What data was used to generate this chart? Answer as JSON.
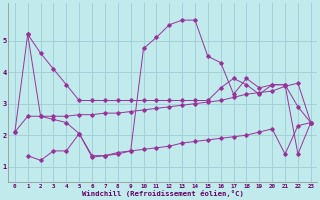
{
  "xlabel": "Windchill (Refroidissement éolien,°C)",
  "background_color": "#c0eaec",
  "grid_color": "#9ecdd4",
  "line_color": "#993399",
  "xlim": [
    -0.5,
    23.5
  ],
  "ylim": [
    0.5,
    6.2
  ],
  "xticks": [
    0,
    1,
    2,
    3,
    4,
    5,
    6,
    7,
    8,
    9,
    10,
    11,
    12,
    13,
    14,
    15,
    16,
    17,
    18,
    19,
    20,
    21,
    22,
    23
  ],
  "yticks": [
    1,
    2,
    3,
    4,
    5
  ],
  "series": [
    {
      "x": [
        0,
        1,
        2,
        3,
        4,
        5,
        6,
        7,
        8,
        9,
        10,
        11,
        12,
        13,
        14,
        15,
        16,
        17,
        18,
        19,
        20,
        21,
        22,
        23
      ],
      "y": [
        2.1,
        5.2,
        4.6,
        4.1,
        3.6,
        3.1,
        3.1,
        3.1,
        3.1,
        3.1,
        3.1,
        3.1,
        3.1,
        3.1,
        3.1,
        3.1,
        3.5,
        3.8,
        3.6,
        3.3,
        3.6,
        3.6,
        2.9,
        2.4
      ]
    },
    {
      "x": [
        1,
        2,
        3,
        4,
        5,
        6,
        7,
        8,
        9,
        10,
        11,
        12,
        13,
        14,
        15,
        16,
        17,
        18,
        19,
        20,
        21,
        22,
        23
      ],
      "y": [
        5.2,
        2.6,
        2.5,
        2.4,
        2.05,
        1.35,
        1.35,
        1.45,
        1.5,
        4.75,
        5.1,
        5.5,
        5.65,
        5.65,
        4.5,
        4.3,
        3.3,
        3.8,
        3.5,
        3.6,
        3.6,
        1.4,
        2.4
      ]
    },
    {
      "x": [
        0,
        1,
        2,
        3,
        4,
        5,
        6,
        7,
        8,
        9,
        10,
        11,
        12,
        13,
        14,
        15,
        16,
        17,
        18,
        19,
        20,
        21,
        22,
        23
      ],
      "y": [
        2.1,
        2.6,
        2.6,
        2.6,
        2.6,
        2.65,
        2.65,
        2.7,
        2.7,
        2.75,
        2.8,
        2.85,
        2.9,
        2.95,
        3.0,
        3.05,
        3.1,
        3.2,
        3.3,
        3.35,
        3.4,
        3.55,
        3.65,
        2.4
      ]
    },
    {
      "x": [
        1,
        2,
        3,
        4,
        5,
        6,
        7,
        8,
        9,
        10,
        11,
        12,
        13,
        14,
        15,
        16,
        17,
        18,
        19,
        20,
        21,
        22,
        23
      ],
      "y": [
        1.35,
        1.2,
        1.5,
        1.5,
        2.05,
        1.3,
        1.35,
        1.4,
        1.5,
        1.55,
        1.6,
        1.65,
        1.75,
        1.8,
        1.85,
        1.9,
        1.95,
        2.0,
        2.1,
        2.2,
        1.4,
        2.3,
        2.4
      ]
    }
  ]
}
